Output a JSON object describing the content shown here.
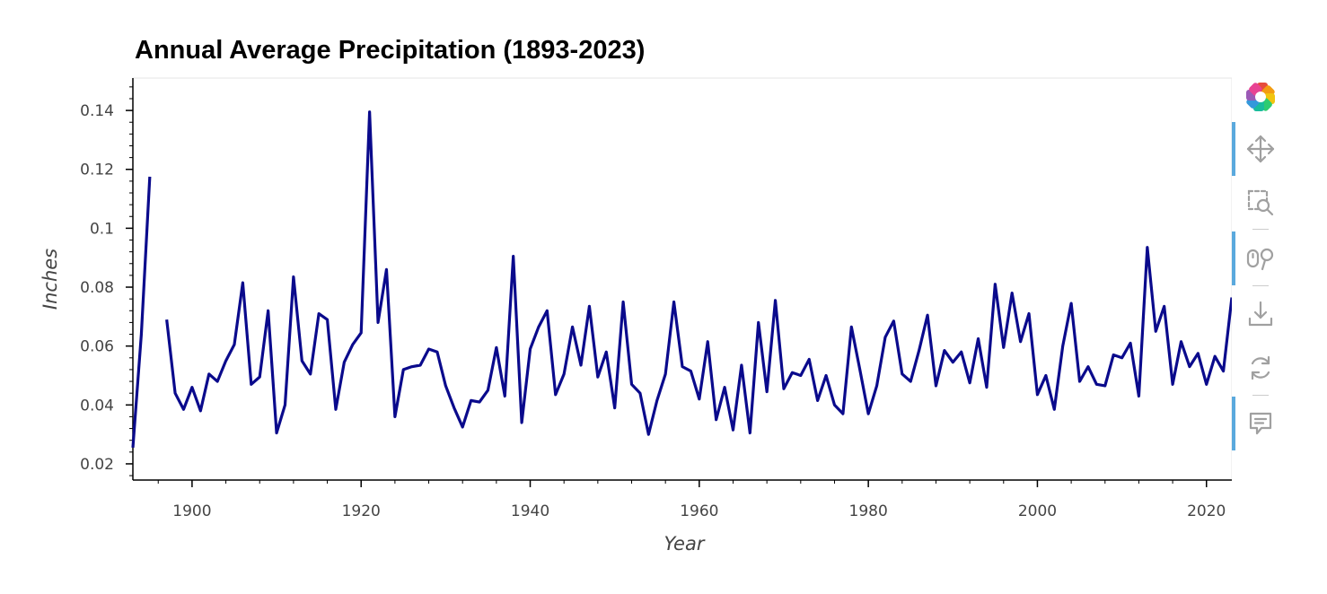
{
  "chart_data": {
    "type": "line",
    "title": "Annual Average Precipitation (1893-2023)",
    "xlabel": "Year",
    "ylabel": "Inches",
    "xlim": [
      1893,
      2023
    ],
    "ylim": [
      0.0145,
      0.151
    ],
    "xticks": [
      1900,
      1920,
      1940,
      1960,
      1980,
      2000,
      2020
    ],
    "xtick_labels": [
      "1900",
      "1920",
      "1940",
      "1960",
      "1980",
      "2000",
      "2020"
    ],
    "yticks": [
      0.02,
      0.04,
      0.06,
      0.08,
      0.1,
      0.12,
      0.14
    ],
    "ytick_labels": [
      "0.02",
      "0.04",
      "0.06",
      "0.08",
      "0.1",
      "0.12",
      "0.14"
    ],
    "grid": false,
    "color": "#0a0a8c",
    "series": [
      {
        "segments": [
          {
            "x": [
              1893,
              1894,
              1895
            ],
            "y": [
              0.0255,
              0.064,
              0.1175
            ]
          },
          {
            "x": [
              1897,
              1898,
              1899,
              1900,
              1901,
              1902,
              1903,
              1904,
              1905,
              1906,
              1907,
              1908,
              1909,
              1910,
              1911,
              1912,
              1913,
              1914,
              1915,
              1916,
              1917,
              1918,
              1919,
              1920,
              1921,
              1922,
              1923,
              1924,
              1925,
              1926,
              1927,
              1928,
              1929,
              1930,
              1931,
              1932,
              1933,
              1934,
              1935,
              1936,
              1937,
              1938,
              1939,
              1940,
              1941,
              1942,
              1943,
              1944,
              1945,
              1946,
              1947,
              1948,
              1949,
              1950,
              1951,
              1952,
              1953,
              1954,
              1955,
              1956,
              1957,
              1958,
              1959,
              1960,
              1961,
              1962,
              1963,
              1964,
              1965,
              1966,
              1967,
              1968,
              1969,
              1970,
              1971,
              1972,
              1973,
              1974,
              1975,
              1976,
              1977,
              1978,
              1979,
              1980,
              1981,
              1982,
              1983,
              1984,
              1985,
              1986,
              1987,
              1988,
              1989,
              1990,
              1991,
              1992,
              1993,
              1994,
              1995,
              1996,
              1997,
              1998,
              1999,
              2000,
              2001,
              2002,
              2003,
              2004,
              2005,
              2006,
              2007,
              2008,
              2009,
              2010,
              2011,
              2012,
              2013,
              2014,
              2015,
              2016,
              2017,
              2018,
              2019,
              2020,
              2021,
              2022,
              2023
            ],
            "y": [
              0.069,
              0.044,
              0.0385,
              0.046,
              0.038,
              0.0505,
              0.048,
              0.055,
              0.0605,
              0.0815,
              0.047,
              0.0495,
              0.072,
              0.0305,
              0.04,
              0.0835,
              0.055,
              0.0505,
              0.071,
              0.069,
              0.0385,
              0.0545,
              0.0605,
              0.0645,
              0.1395,
              0.068,
              0.086,
              0.036,
              0.052,
              0.053,
              0.0535,
              0.059,
              0.058,
              0.0465,
              0.039,
              0.0325,
              0.0415,
              0.041,
              0.045,
              0.0595,
              0.043,
              0.0905,
              0.034,
              0.059,
              0.0665,
              0.072,
              0.0435,
              0.0505,
              0.0665,
              0.0535,
              0.0735,
              0.0495,
              0.058,
              0.039,
              0.075,
              0.047,
              0.044,
              0.03,
              0.0415,
              0.0505,
              0.075,
              0.053,
              0.0515,
              0.042,
              0.0615,
              0.035,
              0.046,
              0.0315,
              0.0535,
              0.0305,
              0.068,
              0.0445,
              0.0755,
              0.0455,
              0.051,
              0.05,
              0.0555,
              0.0415,
              0.05,
              0.04,
              0.037,
              0.0665,
              0.052,
              0.037,
              0.0465,
              0.063,
              0.0685,
              0.0505,
              0.048,
              0.0585,
              0.0705,
              0.0465,
              0.0585,
              0.0545,
              0.058,
              0.0475,
              0.0625,
              0.046,
              0.081,
              0.0595,
              0.078,
              0.0615,
              0.071,
              0.0435,
              0.05,
              0.0385,
              0.06,
              0.0745,
              0.048,
              0.053,
              0.047,
              0.0465,
              0.057,
              0.056,
              0.061,
              0.043,
              0.0935,
              0.065,
              0.0735,
              0.047,
              0.0615,
              0.053,
              0.0575,
              0.047,
              0.0565,
              0.0515,
              0.0765
            ]
          }
        ]
      }
    ]
  },
  "toolbar": {
    "logo_icon": "bokeh-logo-icon",
    "tools": [
      {
        "icon": "pan-icon",
        "active": true
      },
      {
        "icon": "box-zoom-icon",
        "active": false
      },
      {
        "icon": "wheel-zoom-icon",
        "active": true
      },
      {
        "icon": "save-icon",
        "active": false
      },
      {
        "icon": "reset-icon",
        "active": false
      },
      {
        "icon": "hover-icon",
        "active": true
      }
    ],
    "active_color": "#5aa9dd",
    "icon_color": "#a0a0a0"
  }
}
